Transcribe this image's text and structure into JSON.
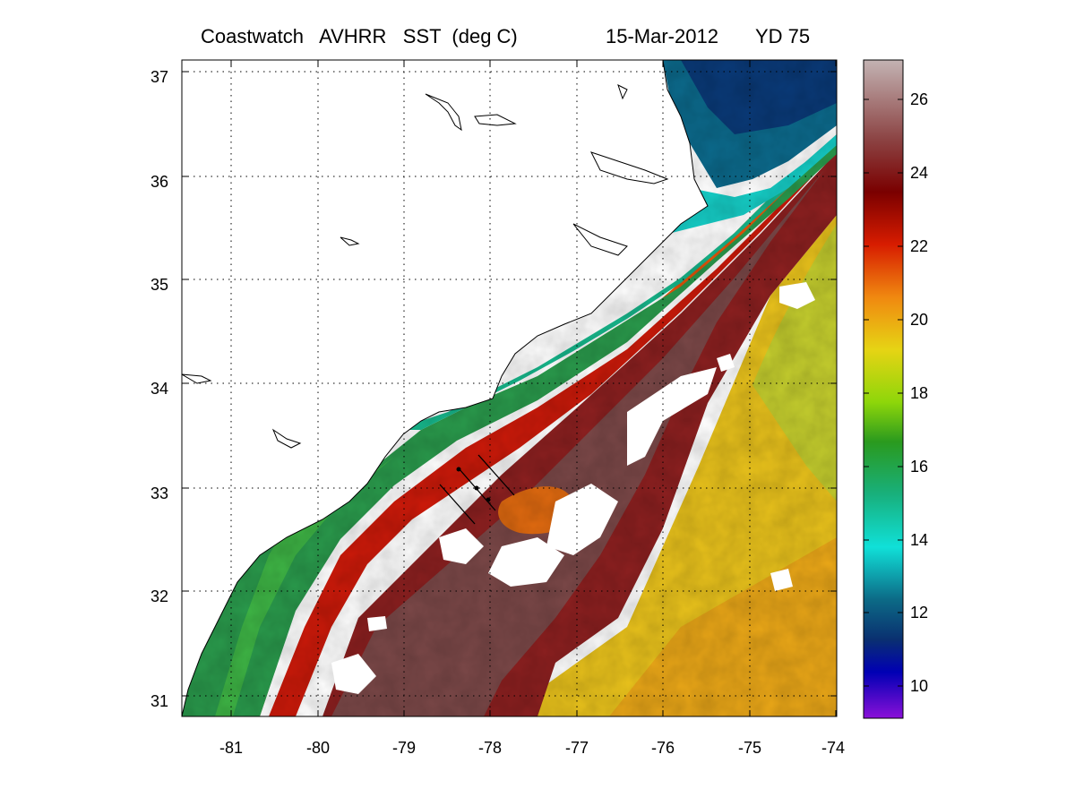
{
  "title": {
    "product": "Coastwatch   AVHRR   SST  (deg C)",
    "date": "15-Mar-2012",
    "yearday": "YD 75"
  },
  "map": {
    "lon_range": [
      -81.6,
      -74.0
    ],
    "lat_range": [
      30.8,
      37.1
    ],
    "lon_ticks": [
      "-81",
      "-80",
      "-79",
      "-78",
      "-77",
      "-76",
      "-75",
      "-74"
    ],
    "lat_ticks": [
      "37",
      "36",
      "35",
      "34",
      "33",
      "32",
      "31"
    ],
    "grid": "dotted"
  },
  "colorbar": {
    "range": [
      9,
      27
    ],
    "ticks": [
      "26",
      "24",
      "22",
      "20",
      "18",
      "16",
      "14",
      "12",
      "10"
    ]
  }
}
